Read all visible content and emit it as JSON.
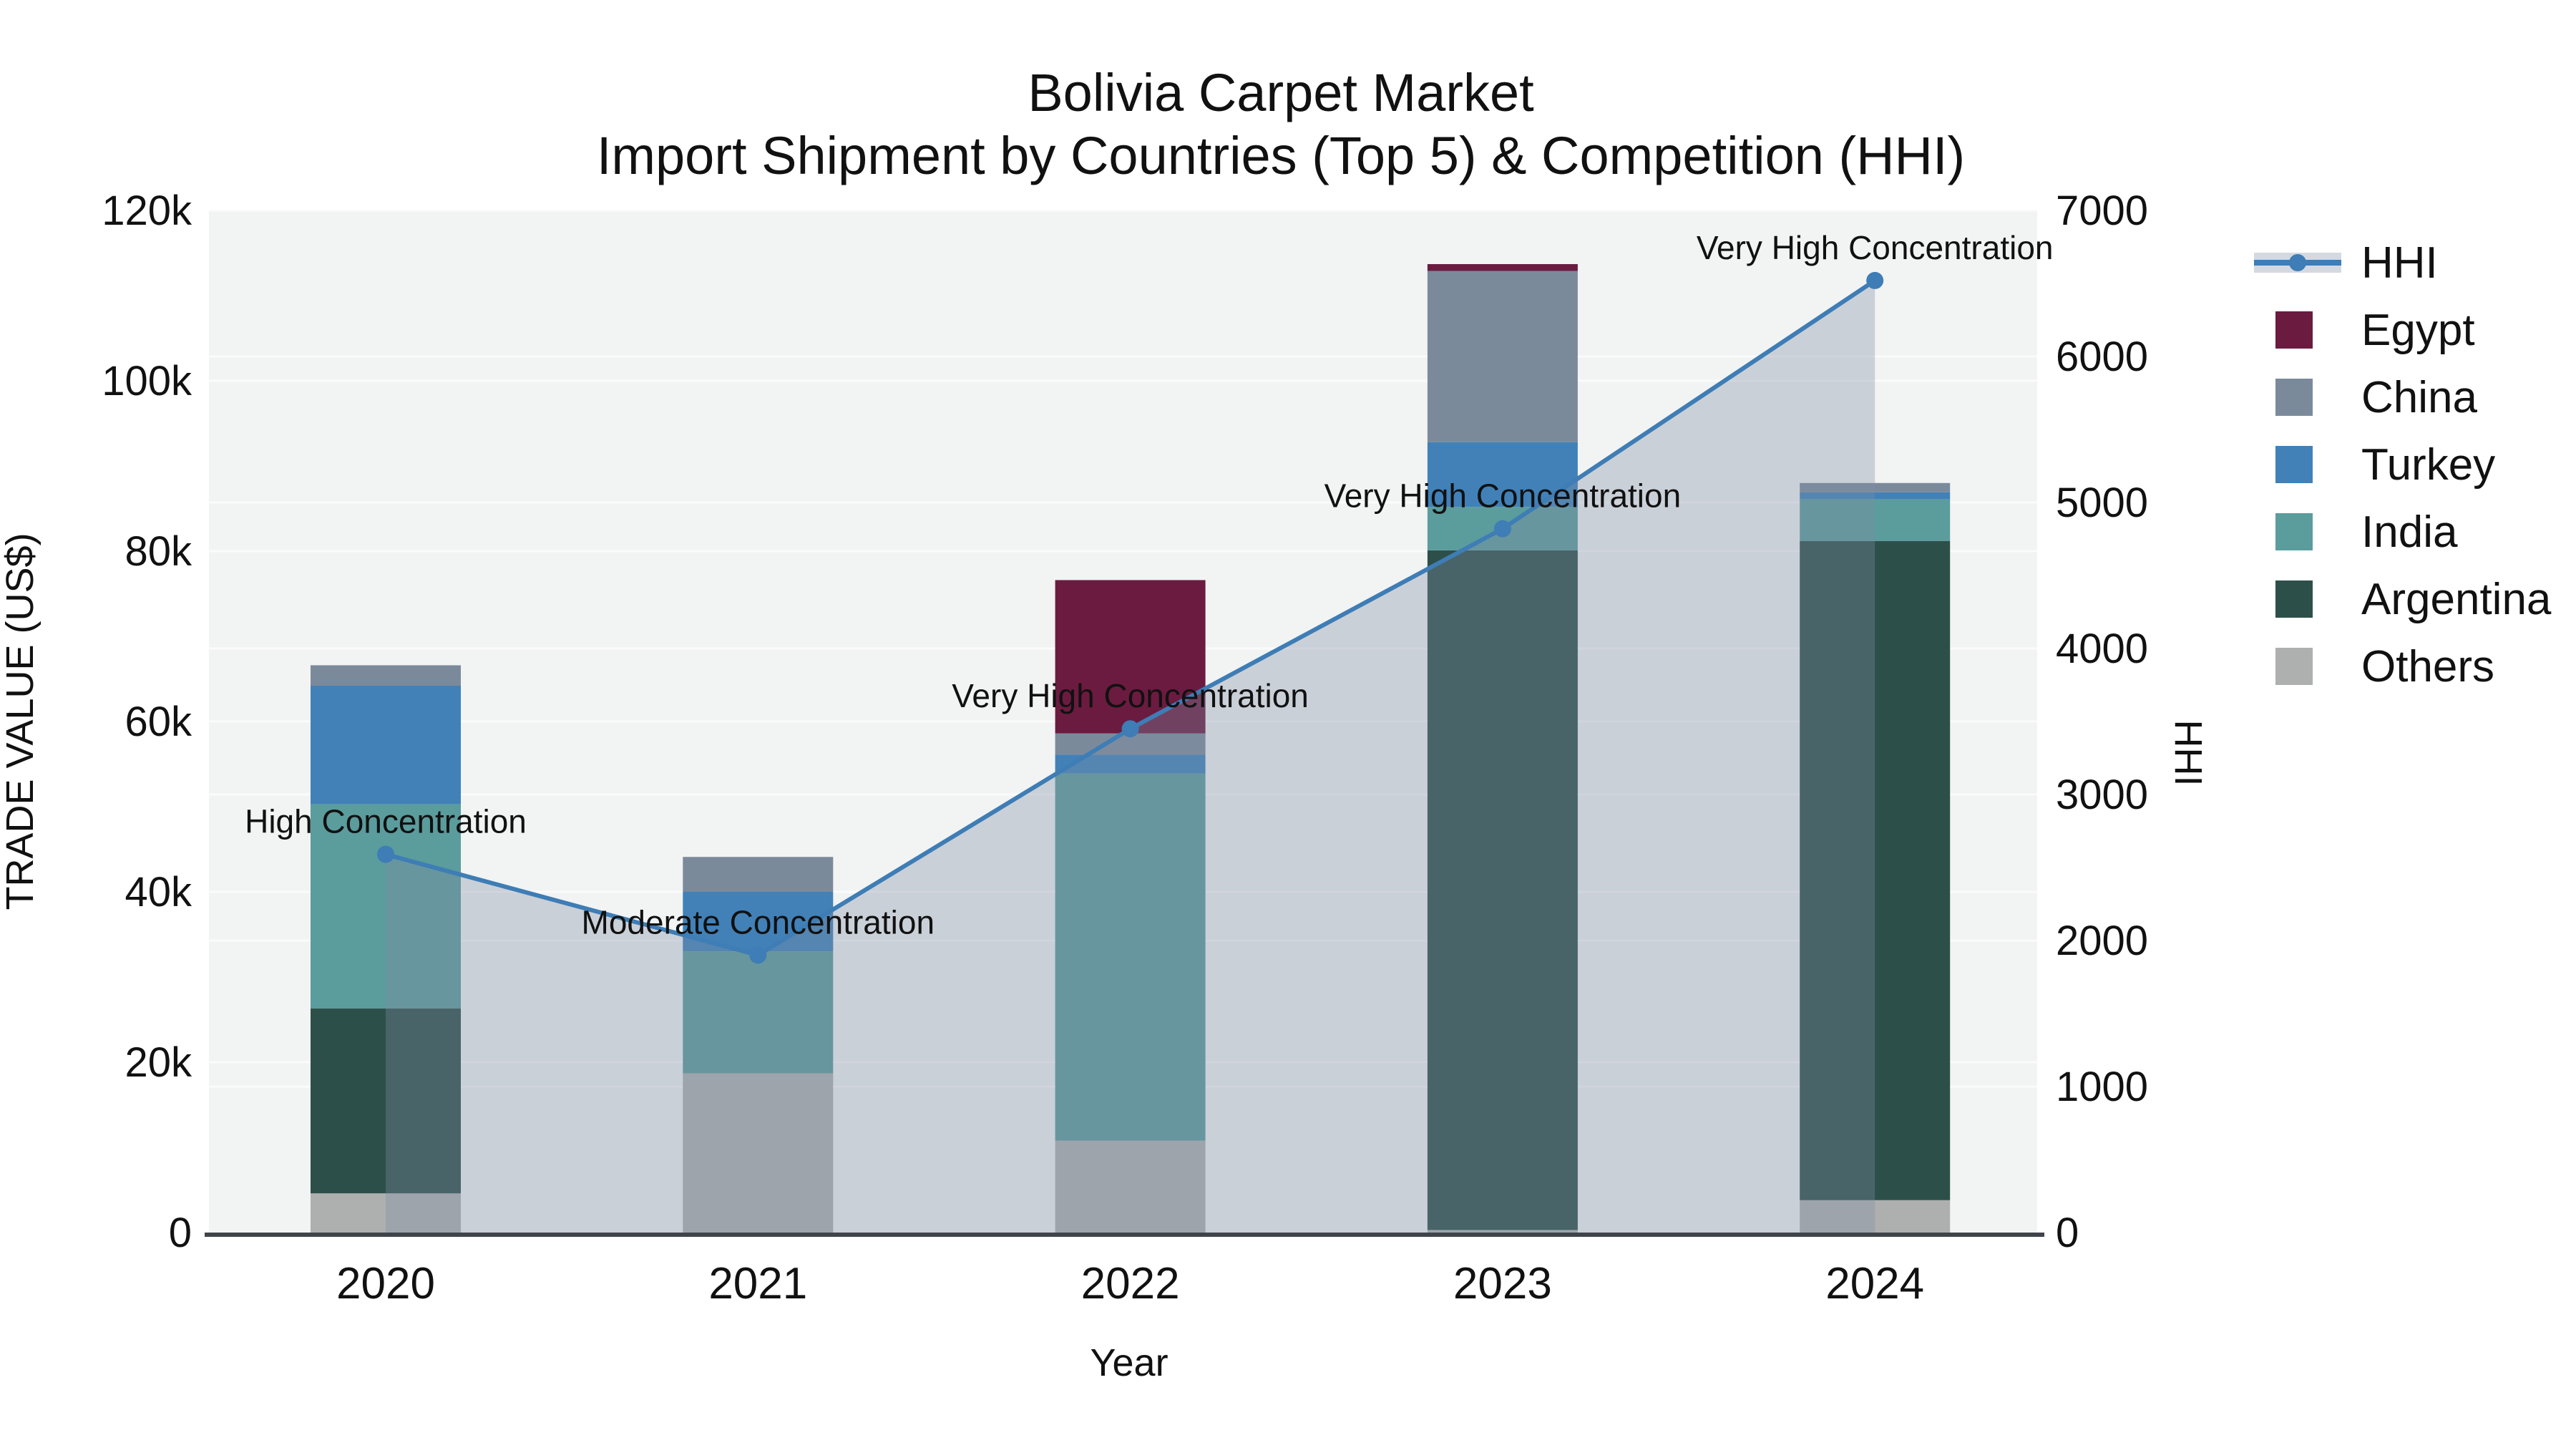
{
  "title": {
    "line1": "Bolivia Carpet Market",
    "line2": "Import Shipment by Countries (Top 5) & Competition (HHI)"
  },
  "axes": {
    "x_title": "Year",
    "y_left_title": "TRADE VALUE (US$)",
    "y_right_title": "HHI",
    "y_left_ticks": [
      "0",
      "20k",
      "40k",
      "60k",
      "80k",
      "100k",
      "120k"
    ],
    "y_left_range": [
      0,
      120000
    ],
    "y_right_ticks": [
      "0",
      "1000",
      "2000",
      "3000",
      "4000",
      "5000",
      "6000",
      "7000"
    ],
    "y_right_range": [
      0,
      7000
    ]
  },
  "colors": {
    "plot_background": "#f2f3f3",
    "gridline": "#fbfbfb",
    "axis_line": "#3f444a",
    "hhi_line": "#3e7db5",
    "hhi_area_fill": "rgba(125,140,165,0.34)",
    "annotation_text": "#0d0d0d"
  },
  "chart_data": {
    "type": "combo: stacked bar (left axis) + line with area fill (right axis)",
    "categories": [
      "2020",
      "2021",
      "2022",
      "2023",
      "2024"
    ],
    "bar_value_unit": "US$",
    "series": [
      {
        "name": "Others",
        "color": "#aeb0b0",
        "values": [
          4600,
          18700,
          10800,
          300,
          3800
        ]
      },
      {
        "name": "Argentina",
        "color": "#2d4f4a",
        "values": [
          21700,
          0,
          0,
          79800,
          77400
        ]
      },
      {
        "name": "India",
        "color": "#5b9c9d",
        "values": [
          24000,
          14300,
          43100,
          5100,
          4900
        ]
      },
      {
        "name": "Turkey",
        "color": "#4181b8",
        "values": [
          13900,
          7000,
          2200,
          7600,
          800
        ]
      },
      {
        "name": "China",
        "color": "#7b8a9b",
        "values": [
          2400,
          4100,
          2500,
          20100,
          1100
        ]
      },
      {
        "name": "Egypt",
        "color": "#6b1b40",
        "values": [
          0,
          0,
          18000,
          800,
          0
        ]
      }
    ],
    "bar_totals": [
      66600,
      44100,
      76600,
      113700,
      88000
    ],
    "line": {
      "name": "HHI",
      "values": [
        2590,
        1900,
        3450,
        4820,
        6520
      ]
    },
    "annotations": [
      {
        "category": "2020",
        "text": "High Concentration"
      },
      {
        "category": "2021",
        "text": "Moderate Concentration"
      },
      {
        "category": "2022",
        "text": "Very High Concentration"
      },
      {
        "category": "2023",
        "text": "Very High Concentration"
      },
      {
        "category": "2024",
        "text": "Very High Concentration"
      }
    ],
    "legend_position": "right",
    "grid": "horizontal gridlines for both y axes"
  },
  "legend": {
    "items": [
      {
        "label": "HHI",
        "type": "line"
      },
      {
        "label": "Egypt",
        "type": "swatch",
        "color": "#6b1b40"
      },
      {
        "label": "China",
        "type": "swatch",
        "color": "#7b8a9b"
      },
      {
        "label": "Turkey",
        "type": "swatch",
        "color": "#4181b8"
      },
      {
        "label": "India",
        "type": "swatch",
        "color": "#5b9c9d"
      },
      {
        "label": "Argentina",
        "type": "swatch",
        "color": "#2d4f4a"
      },
      {
        "label": "Others",
        "type": "swatch",
        "color": "#aeb0b0"
      }
    ]
  }
}
